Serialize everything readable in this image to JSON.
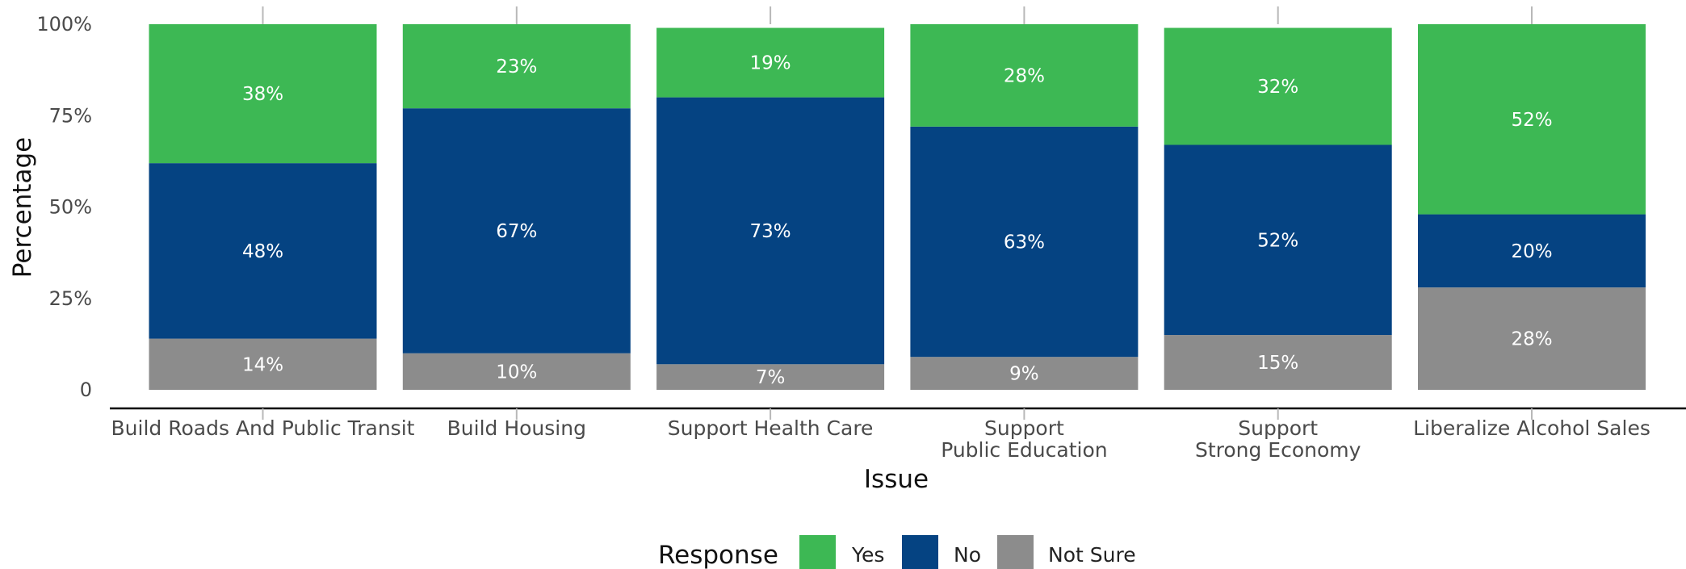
{
  "chart_data": {
    "type": "bar",
    "stacked": true,
    "xlabel": "Issue",
    "ylabel": "Percentage",
    "ylim": [
      0,
      100
    ],
    "y_ticks": [
      "0",
      "25%",
      "50%",
      "75%",
      "100%"
    ],
    "y_tick_values": [
      0,
      25,
      50,
      75,
      100
    ],
    "categories": [
      [
        "Build Roads And Public Transit"
      ],
      [
        "Build Housing"
      ],
      [
        "Support Health Care"
      ],
      [
        "Support",
        "Public Education"
      ],
      [
        "Support",
        "Strong Economy"
      ],
      [
        "Liberalize Alcohol Sales"
      ]
    ],
    "series": [
      {
        "name": "Not Sure",
        "color": "#8c8c8c",
        "values": [
          14,
          10,
          7,
          9,
          15,
          28
        ],
        "labels": [
          "14%",
          "10%",
          "7%",
          "9%",
          "15%",
          "28%"
        ]
      },
      {
        "name": "No",
        "color": "#054382",
        "values": [
          48,
          67,
          73,
          63,
          52,
          20
        ],
        "labels": [
          "48%",
          "67%",
          "73%",
          "63%",
          "52%",
          "20%"
        ]
      },
      {
        "name": "Yes",
        "color": "#3db854",
        "values": [
          38,
          23,
          19,
          28,
          32,
          52
        ],
        "labels": [
          "38%",
          "23%",
          "19%",
          "28%",
          "32%",
          "52%"
        ]
      }
    ],
    "legend": {
      "title": "Response",
      "position": "bottom",
      "items": [
        {
          "label": "Yes",
          "color": "#3db854"
        },
        {
          "label": "No",
          "color": "#054382"
        },
        {
          "label": "Not Sure",
          "color": "#8c8c8c"
        }
      ]
    },
    "grid": false
  }
}
